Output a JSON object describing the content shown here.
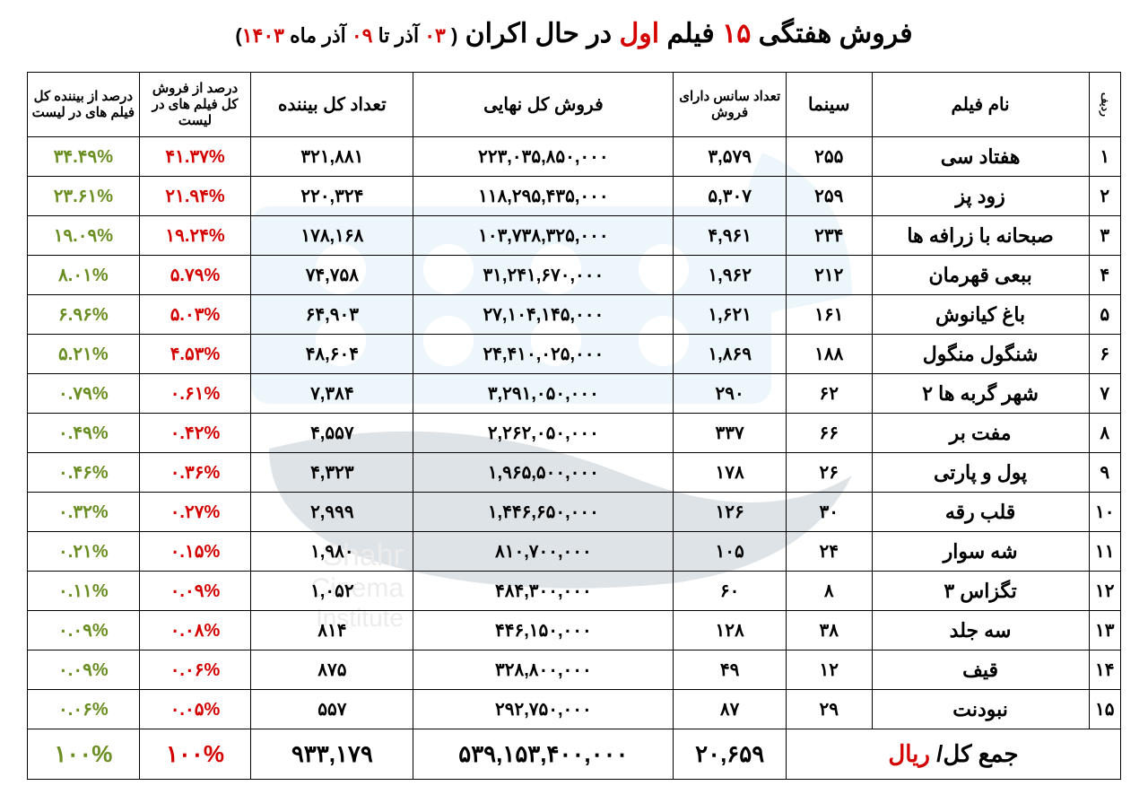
{
  "title": {
    "p1": "فروش هفتگی ",
    "p2": "۱۵",
    "p3": " فیلم ",
    "p4": "اول",
    "p5": " در حال اکران"
  },
  "subtitle": {
    "open": "( ",
    "d1": "۰۳",
    "t1": " آذر تا ",
    "d2": "۰۹",
    "t2": " آذر ماه ",
    "d3": "۱۴۰۳",
    "close": ")"
  },
  "headers": {
    "rank": "ردیف",
    "name": "نام فیلم",
    "cinema": "سینما",
    "sessions": "تعداد سانس دارای فروش",
    "gross": "فروش کل نهایی",
    "viewers": "تعداد کل بیننده",
    "salesPct": "درصد از فروش کل فیلم های در لیست",
    "viewPct": "درصد از بیننده کل فیلم های در لیست"
  },
  "rows": [
    {
      "rank": "۱",
      "name": "هفتاد سی",
      "cinema": "۲۵۵",
      "sessions": "۳,۵۷۹",
      "gross": "۲۲۳,۰۳۵,۸۵۰,۰۰۰",
      "viewers": "۳۲۱,۸۸۱",
      "salesPct": "۴۱.۳۷%",
      "viewPct": "۳۴.۴۹%"
    },
    {
      "rank": "۲",
      "name": "زود پز",
      "cinema": "۲۵۹",
      "sessions": "۵,۳۰۷",
      "gross": "۱۱۸,۲۹۵,۴۳۵,۰۰۰",
      "viewers": "۲۲۰,۳۲۴",
      "salesPct": "۲۱.۹۴%",
      "viewPct": "۲۳.۶۱%"
    },
    {
      "rank": "۳",
      "name": "صبحانه با زرافه ها",
      "cinema": "۲۳۴",
      "sessions": "۴,۹۶۱",
      "gross": "۱۰۳,۷۳۸,۳۲۵,۰۰۰",
      "viewers": "۱۷۸,۱۶۸",
      "salesPct": "۱۹.۲۴%",
      "viewPct": "۱۹.۰۹%"
    },
    {
      "rank": "۴",
      "name": "ببعی قهرمان",
      "cinema": "۲۱۲",
      "sessions": "۱,۹۶۲",
      "gross": "۳۱,۲۴۱,۶۷۰,۰۰۰",
      "viewers": "۷۴,۷۵۸",
      "salesPct": "۵.۷۹%",
      "viewPct": "۸.۰۱%"
    },
    {
      "rank": "۵",
      "name": "باغ کیانوش",
      "cinema": "۱۶۱",
      "sessions": "۱,۶۲۱",
      "gross": "۲۷,۱۰۴,۱۴۵,۰۰۰",
      "viewers": "۶۴,۹۰۳",
      "salesPct": "۵.۰۳%",
      "viewPct": "۶.۹۶%"
    },
    {
      "rank": "۶",
      "name": "شنگول منگول",
      "cinema": "۱۸۸",
      "sessions": "۱,۸۶۹",
      "gross": "۲۴,۴۱۰,۰۲۵,۰۰۰",
      "viewers": "۴۸,۶۰۴",
      "salesPct": "۴.۵۳%",
      "viewPct": "۵.۲۱%"
    },
    {
      "rank": "۷",
      "name": "شهر گربه ها ۲",
      "cinema": "۶۲",
      "sessions": "۲۹۰",
      "gross": "۳,۲۹۱,۰۵۰,۰۰۰",
      "viewers": "۷,۳۸۴",
      "salesPct": "۰.۶۱%",
      "viewPct": "۰.۷۹%"
    },
    {
      "rank": "۸",
      "name": "مفت بر",
      "cinema": "۶۶",
      "sessions": "۳۳۷",
      "gross": "۲,۲۶۲,۰۵۰,۰۰۰",
      "viewers": "۴,۵۵۷",
      "salesPct": "۰.۴۲%",
      "viewPct": "۰.۴۹%"
    },
    {
      "rank": "۹",
      "name": "پول و پارتی",
      "cinema": "۲۶",
      "sessions": "۱۷۸",
      "gross": "۱,۹۶۵,۵۰۰,۰۰۰",
      "viewers": "۴,۳۲۳",
      "salesPct": "۰.۳۶%",
      "viewPct": "۰.۴۶%"
    },
    {
      "rank": "۱۰",
      "name": "قلب رقه",
      "cinema": "۳۰",
      "sessions": "۱۲۶",
      "gross": "۱,۴۴۶,۶۵۰,۰۰۰",
      "viewers": "۲,۹۹۹",
      "salesPct": "۰.۲۷%",
      "viewPct": "۰.۳۲%"
    },
    {
      "rank": "۱۱",
      "name": "شه سوار",
      "cinema": "۲۴",
      "sessions": "۱۰۵",
      "gross": "۸۱۰,۷۰۰,۰۰۰",
      "viewers": "۱,۹۸۰",
      "salesPct": "۰.۱۵%",
      "viewPct": "۰.۲۱%"
    },
    {
      "rank": "۱۲",
      "name": "تگزاس ۳",
      "cinema": "۸",
      "sessions": "۶۰",
      "gross": "۴۸۴,۳۰۰,۰۰۰",
      "viewers": "۱,۰۵۲",
      "salesPct": "۰.۰۹%",
      "viewPct": "۰.۱۱%"
    },
    {
      "rank": "۱۳",
      "name": "سه جلد",
      "cinema": "۳۸",
      "sessions": "۱۲۸",
      "gross": "۴۴۶,۱۵۰,۰۰۰",
      "viewers": "۸۱۴",
      "salesPct": "۰.۰۸%",
      "viewPct": "۰.۰۹%"
    },
    {
      "rank": "۱۴",
      "name": "قیف",
      "cinema": "۱۲",
      "sessions": "۴۹",
      "gross": "۳۲۸,۸۰۰,۰۰۰",
      "viewers": "۸۷۵",
      "salesPct": "۰.۰۶%",
      "viewPct": "۰.۰۹%"
    },
    {
      "rank": "۱۵",
      "name": "نبودنت",
      "cinema": "۲۹",
      "sessions": "۸۷",
      "gross": "۲۹۲,۷۵۰,۰۰۰",
      "viewers": "۵۵۷",
      "salesPct": "۰.۰۵%",
      "viewPct": "۰.۰۶%"
    }
  ],
  "total": {
    "label_p1": "جمع کل/ ",
    "label_p2": "ریال",
    "sessions": "۲۰,۶۵۹",
    "gross": "۵۳۹,۱۵۳,۴۰۰,۰۰۰",
    "viewers": "۹۳۳,۱۷۹",
    "salesPct": "۱۰۰%",
    "viewPct": "۱۰۰%"
  },
  "style": {
    "red": "#d40000",
    "green": "#6b8e23",
    "border": "#000000",
    "bg": "#ffffff",
    "watermark": "#8ecae6",
    "body_font_size": 20,
    "header_font_size": 20,
    "title_font_size": 30
  }
}
